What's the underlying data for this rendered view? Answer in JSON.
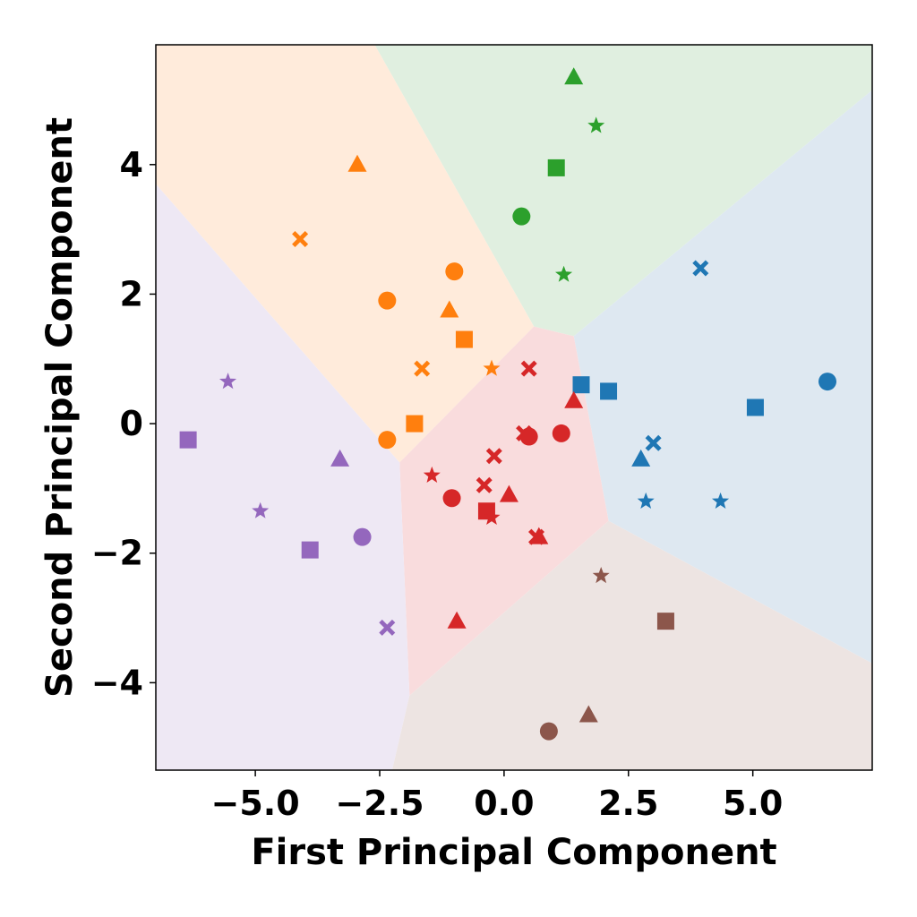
{
  "chart_data": {
    "type": "scatter",
    "title": "",
    "xlabel": "First Principal Component",
    "ylabel": "Second Principal Component",
    "xlim": [
      -7.0,
      7.4
    ],
    "ylim": [
      -5.35,
      5.85
    ],
    "xticks": [
      -5.0,
      -2.5,
      0.0,
      2.5,
      5.0
    ],
    "xtick_labels": [
      "−5.0",
      "−2.5",
      "0.0",
      "2.5",
      "5.0"
    ],
    "yticks": [
      -4,
      -2,
      0,
      2,
      4
    ],
    "ytick_labels": [
      "−4",
      "−2",
      "0",
      "2",
      "4"
    ],
    "grid": false,
    "legend": "none",
    "colors": {
      "blue": "#1f77b4",
      "orange": "#ff7f0e",
      "green": "#2ca02c",
      "red": "#d62728",
      "purple": "#9467bd",
      "brown": "#8c564b"
    },
    "regions": [
      {
        "cluster": "green",
        "fill": "#e0efe0",
        "polygon": [
          [
            -2.6,
            5.85
          ],
          [
            7.4,
            5.85
          ],
          [
            7.4,
            5.15
          ],
          [
            1.4,
            1.35
          ],
          [
            0.6,
            1.5
          ]
        ]
      },
      {
        "cluster": "orange",
        "fill": "#ffebdb",
        "polygon": [
          [
            -7.0,
            5.85
          ],
          [
            -2.6,
            5.85
          ],
          [
            0.6,
            1.5
          ],
          [
            -2.1,
            -0.6
          ],
          [
            -7.0,
            3.7
          ]
        ]
      },
      {
        "cluster": "blue",
        "fill": "#dee8f1",
        "polygon": [
          [
            1.4,
            1.35
          ],
          [
            7.4,
            5.15
          ],
          [
            7.4,
            -3.7
          ],
          [
            2.1,
            -1.5
          ]
        ]
      },
      {
        "cluster": "red",
        "fill": "#f9dcdd",
        "polygon": [
          [
            0.6,
            1.5
          ],
          [
            1.4,
            1.35
          ],
          [
            2.1,
            -1.5
          ],
          [
            -1.9,
            -4.2
          ],
          [
            -2.1,
            -0.6
          ]
        ]
      },
      {
        "cluster": "purple",
        "fill": "#eee8f4",
        "polygon": [
          [
            -7.0,
            3.7
          ],
          [
            -2.1,
            -0.6
          ],
          [
            -1.9,
            -4.2
          ],
          [
            -2.25,
            -5.35
          ],
          [
            -7.0,
            -5.35
          ]
        ]
      },
      {
        "cluster": "brown",
        "fill": "#ede4e2",
        "polygon": [
          [
            -1.9,
            -4.2
          ],
          [
            2.1,
            -1.5
          ],
          [
            7.4,
            -3.7
          ],
          [
            7.4,
            -5.35
          ],
          [
            -2.25,
            -5.35
          ]
        ]
      }
    ],
    "points": [
      {
        "x": 1.4,
        "y": 5.35,
        "cluster": "green",
        "marker": "triangle"
      },
      {
        "x": 1.85,
        "y": 4.6,
        "cluster": "green",
        "marker": "star"
      },
      {
        "x": 1.05,
        "y": 3.95,
        "cluster": "green",
        "marker": "square"
      },
      {
        "x": 0.35,
        "y": 3.2,
        "cluster": "green",
        "marker": "circle"
      },
      {
        "x": 1.2,
        "y": 2.3,
        "cluster": "green",
        "marker": "star"
      },
      {
        "x": -2.95,
        "y": 4.0,
        "cluster": "orange",
        "marker": "triangle"
      },
      {
        "x": -4.1,
        "y": 2.85,
        "cluster": "orange",
        "marker": "x"
      },
      {
        "x": -1.0,
        "y": 2.35,
        "cluster": "orange",
        "marker": "circle"
      },
      {
        "x": -2.35,
        "y": 1.9,
        "cluster": "orange",
        "marker": "circle"
      },
      {
        "x": -1.1,
        "y": 1.75,
        "cluster": "orange",
        "marker": "triangle"
      },
      {
        "x": -0.8,
        "y": 1.3,
        "cluster": "orange",
        "marker": "square"
      },
      {
        "x": -1.65,
        "y": 0.85,
        "cluster": "orange",
        "marker": "x"
      },
      {
        "x": -0.25,
        "y": 0.85,
        "cluster": "orange",
        "marker": "star"
      },
      {
        "x": -1.8,
        "y": 0.0,
        "cluster": "orange",
        "marker": "square"
      },
      {
        "x": -2.35,
        "y": -0.25,
        "cluster": "orange",
        "marker": "circle"
      },
      {
        "x": 3.95,
        "y": 2.4,
        "cluster": "blue",
        "marker": "x"
      },
      {
        "x": 6.5,
        "y": 0.65,
        "cluster": "blue",
        "marker": "circle"
      },
      {
        "x": 1.55,
        "y": 0.6,
        "cluster": "blue",
        "marker": "square"
      },
      {
        "x": 2.1,
        "y": 0.5,
        "cluster": "blue",
        "marker": "square"
      },
      {
        "x": 5.05,
        "y": 0.25,
        "cluster": "blue",
        "marker": "square"
      },
      {
        "x": 3.0,
        "y": -0.3,
        "cluster": "blue",
        "marker": "x"
      },
      {
        "x": 2.75,
        "y": -0.55,
        "cluster": "blue",
        "marker": "triangle"
      },
      {
        "x": 2.85,
        "y": -1.2,
        "cluster": "blue",
        "marker": "star"
      },
      {
        "x": 4.35,
        "y": -1.2,
        "cluster": "blue",
        "marker": "star"
      },
      {
        "x": 0.5,
        "y": 0.85,
        "cluster": "red",
        "marker": "x"
      },
      {
        "x": 1.4,
        "y": 0.35,
        "cluster": "red",
        "marker": "triangle"
      },
      {
        "x": 1.15,
        "y": -0.15,
        "cluster": "red",
        "marker": "circle"
      },
      {
        "x": 0.4,
        "y": -0.15,
        "cluster": "red",
        "marker": "x"
      },
      {
        "x": 0.5,
        "y": -0.2,
        "cluster": "red",
        "marker": "circle"
      },
      {
        "x": -0.2,
        "y": -0.5,
        "cluster": "red",
        "marker": "x"
      },
      {
        "x": -1.45,
        "y": -0.8,
        "cluster": "red",
        "marker": "star"
      },
      {
        "x": -0.4,
        "y": -0.95,
        "cluster": "red",
        "marker": "x"
      },
      {
        "x": -1.05,
        "y": -1.15,
        "cluster": "red",
        "marker": "circle"
      },
      {
        "x": 0.1,
        "y": -1.1,
        "cluster": "red",
        "marker": "triangle"
      },
      {
        "x": -0.35,
        "y": -1.35,
        "cluster": "red",
        "marker": "square"
      },
      {
        "x": -0.25,
        "y": -1.45,
        "cluster": "red",
        "marker": "star"
      },
      {
        "x": 0.7,
        "y": -1.75,
        "cluster": "red",
        "marker": "triangle"
      },
      {
        "x": 0.65,
        "y": -1.75,
        "cluster": "red",
        "marker": "x"
      },
      {
        "x": -0.95,
        "y": -3.05,
        "cluster": "red",
        "marker": "triangle"
      },
      {
        "x": -5.55,
        "y": 0.65,
        "cluster": "purple",
        "marker": "star"
      },
      {
        "x": -6.35,
        "y": -0.25,
        "cluster": "purple",
        "marker": "square"
      },
      {
        "x": -3.3,
        "y": -0.55,
        "cluster": "purple",
        "marker": "triangle"
      },
      {
        "x": -4.9,
        "y": -1.35,
        "cluster": "purple",
        "marker": "star"
      },
      {
        "x": -2.85,
        "y": -1.75,
        "cluster": "purple",
        "marker": "circle"
      },
      {
        "x": -3.9,
        "y": -1.95,
        "cluster": "purple",
        "marker": "square"
      },
      {
        "x": -2.35,
        "y": -3.15,
        "cluster": "purple",
        "marker": "x"
      },
      {
        "x": 1.95,
        "y": -2.35,
        "cluster": "brown",
        "marker": "star"
      },
      {
        "x": 3.25,
        "y": -3.05,
        "cluster": "brown",
        "marker": "square"
      },
      {
        "x": 1.7,
        "y": -4.5,
        "cluster": "brown",
        "marker": "triangle"
      },
      {
        "x": 0.9,
        "y": -4.75,
        "cluster": "brown",
        "marker": "circle"
      }
    ]
  }
}
